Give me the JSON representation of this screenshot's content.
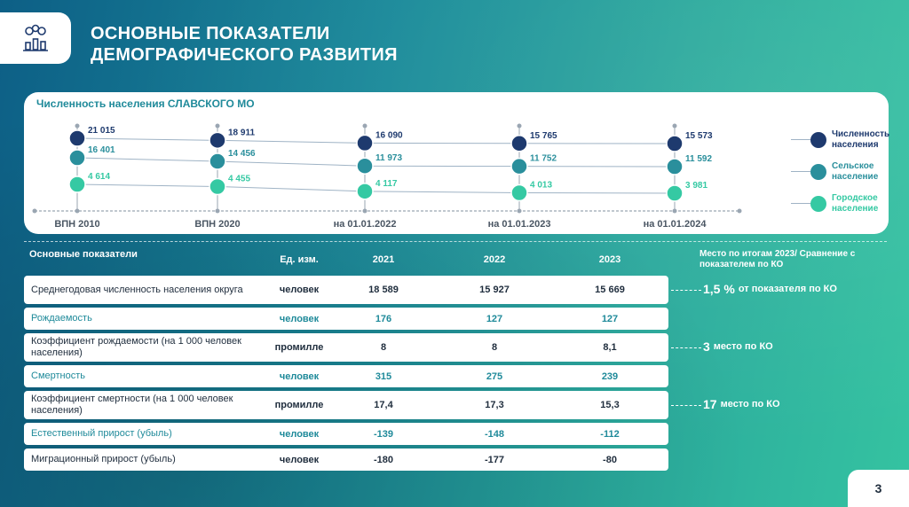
{
  "header": {
    "title_line1": "ОСНОВНЫЕ ПОКАЗАТЕЛИ",
    "title_line2": "ДЕМОГРАФИЧЕСКОГО РАЗВИТИЯ",
    "logo_icon": "gears-chart-icon"
  },
  "chart_data": {
    "type": "line",
    "title": "Численность населения СЛАВСКОГО МО",
    "categories": [
      "ВПН 2010",
      "ВПН 2020",
      "на 01.01.2022",
      "на 01.01.2023",
      "на 01.01.2024"
    ],
    "series": [
      {
        "name": "Численность населения",
        "color": "#1e3a6e",
        "values": [
          21015,
          18911,
          16090,
          15765,
          15573
        ],
        "labels": [
          "21 015",
          "18 911",
          "16 090",
          "15 765",
          "15 573"
        ]
      },
      {
        "name": "Сельское население",
        "color": "#2a8f9c",
        "values": [
          16401,
          14456,
          11973,
          11752,
          11592
        ],
        "labels": [
          "16 401",
          "14 456",
          "11 973",
          "11 752",
          "11 592"
        ]
      },
      {
        "name": "Городское население",
        "color": "#35c9a3",
        "values": [
          4614,
          4455,
          4117,
          4013,
          3981
        ],
        "labels": [
          "4 614",
          "4 455",
          "4 117",
          "4 013",
          "3 981"
        ]
      }
    ],
    "legend_position": "right"
  },
  "legend": {
    "item1": "Численность населения",
    "item2": "Сельское население",
    "item3": "Городское население"
  },
  "table": {
    "head_indicator": "Основные показатели",
    "head_unit": "Ед. изм.",
    "head_y1": "2021",
    "head_y2": "2022",
    "head_y3": "2023",
    "head_place": "Место по итогам 2023/ Сравнение с показателем по КО",
    "rows": [
      {
        "name": "Среднегодовая численность населения округа",
        "unit": "человек",
        "y1": "18 589",
        "y2": "15 927",
        "y3": "15 669"
      },
      {
        "name": "Рождаемость",
        "unit": "человек",
        "y1": "176",
        "y2": "127",
        "y3": "127"
      },
      {
        "name": "Коэффициент рождаемости (на 1 000 человек населения)",
        "unit": "промилле",
        "y1": "8",
        "y2": "8",
        "y3": "8,1"
      },
      {
        "name": "Смертность",
        "unit": "человек",
        "y1": "315",
        "y2": "275",
        "y3": "239"
      },
      {
        "name": "Коэффициент смертности (на 1 000 человек населения)",
        "unit": "промилле",
        "y1": "17,4",
        "y2": "17,3",
        "y3": "15,3"
      },
      {
        "name": "Естественный прирост (убыль)",
        "unit": "человек",
        "y1": "-139",
        "y2": "-148",
        "y3": "-112"
      },
      {
        "name": "Миграционный прирост (убыль)",
        "unit": "человек",
        "y1": "-180",
        "y2": "-177",
        "y3": "-80"
      }
    ]
  },
  "notes": {
    "n1_big": "1,5 %",
    "n1_rest": "от показателя по КО",
    "n2_big": "3",
    "n2_rest": "место по КО",
    "n3_big": "17",
    "n3_rest": "место по КО"
  },
  "page": {
    "number": "3"
  }
}
